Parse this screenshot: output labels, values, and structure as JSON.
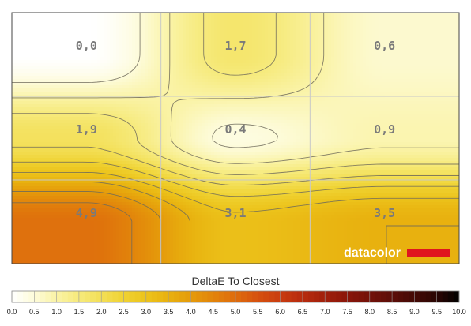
{
  "chart_data": {
    "type": "heatmap",
    "title": "DeltaE To Closest",
    "rows": 3,
    "cols": 3,
    "values": [
      [
        0.0,
        1.7,
        0.6
      ],
      [
        1.9,
        0.4,
        0.9
      ],
      [
        4.9,
        3.1,
        3.5
      ]
    ],
    "cell_labels": [
      [
        "0,0",
        "1,7",
        "0,6"
      ],
      [
        "1,9",
        "0,4",
        "0,9"
      ],
      [
        "4,9",
        "3,1",
        "3,5"
      ]
    ],
    "color_scale": {
      "min": 0.0,
      "max": 10.0,
      "ticks": [
        "0.0",
        "0.5",
        "1.0",
        "1.5",
        "2.0",
        "2.5",
        "3.0",
        "3.5",
        "4.0",
        "4.5",
        "5.0",
        "5.5",
        "6.0",
        "6.5",
        "7.0",
        "7.5",
        "8.0",
        "8.5",
        "9.0",
        "9.5",
        "10.0"
      ],
      "colors": [
        "#ffffff",
        "#fdfbd9",
        "#faf3a6",
        "#f6ea7c",
        "#f3df56",
        "#efd232",
        "#ecc31b",
        "#e8b10f",
        "#e59b0b",
        "#e2840b",
        "#de6c0d",
        "#d6510f",
        "#c93c10",
        "#b72b0e",
        "#a11f0b",
        "#8a160a",
        "#731109",
        "#5c0d08",
        "#440906",
        "#2a0503",
        "#000000"
      ]
    },
    "grid": true,
    "brand": {
      "text": "datacolor",
      "bar_color": "#e0141e"
    }
  }
}
